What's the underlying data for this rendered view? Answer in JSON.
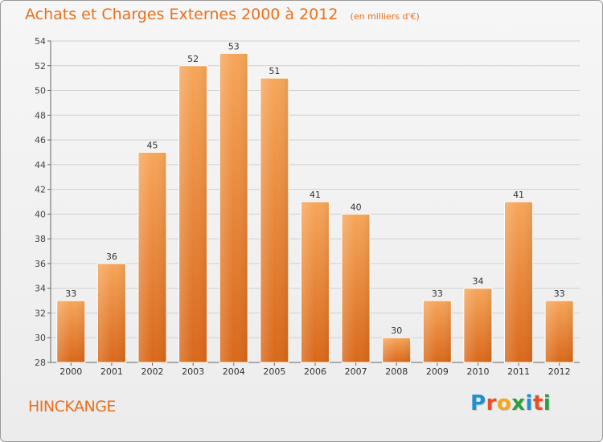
{
  "title": "Achats et Charges Externes 2000 à 2012",
  "subtitle": "(en milliers d'€)",
  "place": "HINCKANGE",
  "logo": {
    "letters": [
      "P",
      "r",
      "o",
      "x",
      "i",
      "t",
      "i"
    ],
    "colors": [
      "#1f8fd6",
      "#e94e2a",
      "#f2a81d",
      "#2e9e3e",
      "#1f8fd6",
      "#e94e2a",
      "#2e9e3e"
    ]
  },
  "colors": {
    "bar": "#f0883a",
    "title": "#e9701e",
    "grid": "#d0d0d0"
  },
  "chart_data": {
    "type": "bar",
    "categories": [
      "2000",
      "2001",
      "2002",
      "2003",
      "2004",
      "2005",
      "2006",
      "2007",
      "2008",
      "2009",
      "2010",
      "2011",
      "2012"
    ],
    "values": [
      33,
      36,
      45,
      52,
      53,
      51,
      41,
      40,
      30,
      33,
      34,
      41,
      33
    ],
    "ylim": [
      28,
      54
    ],
    "yticks": [
      28,
      30,
      32,
      34,
      36,
      38,
      40,
      42,
      44,
      46,
      48,
      50,
      52,
      54
    ],
    "grid": true
  }
}
